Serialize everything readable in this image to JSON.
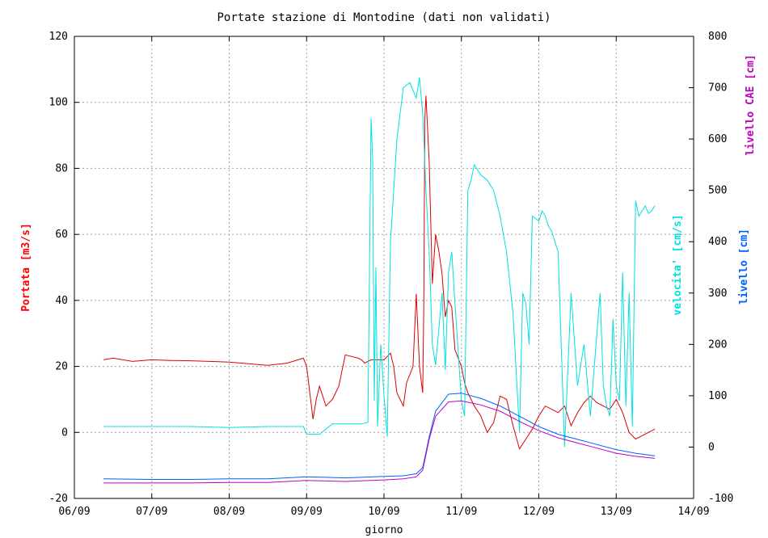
{
  "chart_data": {
    "type": "line",
    "title": "Portate stazione di Montodine (dati non validati)",
    "xlabel": "giorno",
    "x_ticks": [
      "06/09",
      "07/09",
      "08/09",
      "09/09",
      "10/09",
      "11/09",
      "12/09",
      "13/09",
      "14/09"
    ],
    "xlim": [
      "06/09 00:00",
      "14/09 00:00"
    ],
    "y_left": {
      "label": "Portata [m3/s]",
      "ylim": [
        -20,
        120
      ],
      "ticks": [
        -20,
        0,
        20,
        40,
        60,
        80,
        100,
        120
      ],
      "color": "#ff0000"
    },
    "y_right": {
      "ylim": [
        -100,
        800
      ],
      "ticks": [
        -100,
        0,
        100,
        200,
        300,
        400,
        500,
        600,
        700,
        800
      ],
      "labels": [
        {
          "text": "velocita' [cm/s]",
          "color": "#00e0e0"
        },
        {
          "text": "livello [cm]",
          "color": "#0060ff"
        },
        {
          "text": "livello CAE [cm]",
          "color": "#c000c0"
        }
      ]
    },
    "grid": true,
    "series": [
      {
        "name": "Portata [m3/s]",
        "axis": "left",
        "color": "#dd0000",
        "x": [
          "06/09 09:00",
          "06/09 12:00",
          "06/09 18:00",
          "07/09 00:00",
          "07/09 06:00",
          "07/09 12:00",
          "07/09 18:00",
          "08/09 00:00",
          "08/09 06:00",
          "08/09 12:00",
          "08/09 18:00",
          "08/09 23:00",
          "09/09 00:00",
          "09/09 02:00",
          "09/09 03:00",
          "09/09 04:00",
          "09/09 06:00",
          "09/09 08:00",
          "09/09 10:00",
          "09/09 12:00",
          "09/09 14:00",
          "09/09 16:00",
          "09/09 17:00",
          "09/09 18:00",
          "09/09 20:00",
          "10/09 00:00",
          "10/09 01:00",
          "10/09 02:00",
          "10/09 03:00",
          "10/09 04:00",
          "10/09 06:00",
          "10/09 07:00",
          "10/09 09:00",
          "10/09 10:00",
          "10/09 11:00",
          "10/09 12:00",
          "10/09 12:20",
          "10/09 12:40",
          "10/09 13:00",
          "10/09 14:00",
          "10/09 15:00",
          "10/09 16:00",
          "10/09 17:00",
          "10/09 18:00",
          "10/09 19:00",
          "10/09 20:00",
          "10/09 21:00",
          "10/09 22:00",
          "11/09 00:00",
          "11/09 01:00",
          "11/09 02:00",
          "11/09 03:00",
          "11/09 04:00",
          "11/09 06:00",
          "11/09 08:00",
          "11/09 10:00",
          "11/09 12:00",
          "11/09 14:00",
          "11/09 16:00",
          "11/09 18:00",
          "11/09 20:00",
          "11/09 22:00",
          "12/09 00:00",
          "12/09 02:00",
          "12/09 04:00",
          "12/09 06:00",
          "12/09 08:00",
          "12/09 10:00",
          "12/09 12:00",
          "12/09 14:00",
          "12/09 16:00",
          "12/09 18:00",
          "12/09 20:00",
          "12/09 22:00",
          "13/09 00:00",
          "13/09 02:00",
          "13/09 04:00",
          "13/09 06:00",
          "13/09 08:00",
          "13/09 10:00",
          "13/09 12:00"
        ],
        "y": [
          22,
          22.5,
          21.5,
          22,
          21.8,
          21.7,
          21.5,
          21.3,
          20.8,
          20.3,
          21,
          22.5,
          20,
          4,
          10,
          14,
          8,
          10,
          14,
          23.5,
          23,
          22.5,
          22,
          21,
          22,
          22,
          23,
          24,
          20,
          12,
          8,
          15,
          20,
          42,
          20,
          12,
          38,
          95,
          102,
          82,
          45,
          60,
          55,
          48,
          35,
          40,
          38,
          25,
          20,
          15,
          12,
          10,
          8,
          5,
          0,
          3,
          11,
          10,
          2,
          -5,
          -2,
          1,
          5,
          8,
          7,
          6,
          8,
          2,
          6,
          9,
          11,
          9,
          8,
          7,
          10,
          6,
          0,
          -2,
          -1,
          0,
          1
        ]
      },
      {
        "name": "velocita' [cm/s]",
        "axis": "right",
        "color": "#00e0e0",
        "x": [
          "06/09 09:00",
          "07/09 00:00",
          "07/09 12:00",
          "08/09 00:00",
          "08/09 12:00",
          "08/09 23:00",
          "09/09 00:00",
          "09/09 04:00",
          "09/09 08:00",
          "09/09 12:00",
          "09/09 17:00",
          "09/09 19:00",
          "09/09 20:00",
          "09/09 20:30",
          "09/09 21:00",
          "09/09 21:30",
          "09/09 22:00",
          "09/09 23:00",
          "10/09 00:00",
          "10/09 01:00",
          "10/09 02:00",
          "10/09 04:00",
          "10/09 06:00",
          "10/09 08:00",
          "10/09 10:00",
          "10/09 11:00",
          "10/09 12:00",
          "10/09 13:00",
          "10/09 14:00",
          "10/09 15:00",
          "10/09 16:00",
          "10/09 17:00",
          "10/09 18:00",
          "10/09 19:00",
          "10/09 20:00",
          "10/09 21:00",
          "10/09 22:00",
          "11/09 00:00",
          "11/09 01:00",
          "11/09 02:00",
          "11/09 03:00",
          "11/09 04:00",
          "11/09 06:00",
          "11/09 08:00",
          "11/09 10:00",
          "11/09 12:00",
          "11/09 14:00",
          "11/09 16:00",
          "11/09 18:00",
          "11/09 19:00",
          "11/09 20:00",
          "11/09 21:00",
          "11/09 22:00",
          "12/09 00:00",
          "12/09 01:00",
          "12/09 02:00",
          "12/09 03:00",
          "12/09 04:00",
          "12/09 05:00",
          "12/09 06:00",
          "12/09 08:00",
          "12/09 10:00",
          "12/09 12:00",
          "12/09 14:00",
          "12/09 16:00",
          "12/09 18:00",
          "12/09 19:00",
          "12/09 20:00",
          "12/09 21:00",
          "12/09 22:00",
          "12/09 23:00",
          "13/09 00:00",
          "13/09 01:00",
          "13/09 02:00",
          "13/09 03:00",
          "13/09 04:00",
          "13/09 05:00",
          "13/09 06:00",
          "13/09 07:00",
          "13/09 08:00",
          "13/09 09:00",
          "13/09 10:00",
          "13/09 11:00",
          "13/09 12:00"
        ],
        "y": [
          40,
          40,
          40,
          38,
          40,
          40,
          25,
          25,
          45,
          45,
          45,
          48,
          640,
          560,
          90,
          350,
          40,
          200,
          100,
          20,
          400,
          600,
          700,
          710,
          680,
          720,
          650,
          500,
          380,
          200,
          160,
          230,
          300,
          150,
          340,
          380,
          280,
          90,
          60,
          500,
          520,
          550,
          530,
          520,
          500,
          450,
          380,
          260,
          30,
          300,
          280,
          200,
          450,
          440,
          460,
          450,
          430,
          420,
          400,
          380,
          0,
          300,
          120,
          200,
          60,
          220,
          300,
          120,
          80,
          60,
          250,
          120,
          90,
          340,
          80,
          300,
          40,
          480,
          450,
          460,
          470,
          455,
          460,
          470
        ]
      },
      {
        "name": "livello [cm]",
        "axis": "right",
        "color": "#0060ff",
        "x": [
          "06/09 09:00",
          "07/09 00:00",
          "07/09 12:00",
          "08/09 00:00",
          "08/09 12:00",
          "09/09 00:00",
          "09/09 06:00",
          "09/09 12:00",
          "10/09 00:00",
          "10/09 06:00",
          "10/09 10:00",
          "10/09 12:00",
          "10/09 14:00",
          "10/09 16:00",
          "10/09 20:00",
          "11/09 00:00",
          "11/09 06:00",
          "11/09 12:00",
          "11/09 18:00",
          "12/09 00:00",
          "12/09 06:00",
          "12/09 12:00",
          "12/09 18:00",
          "13/09 00:00",
          "13/09 06:00",
          "13/09 12:00"
        ],
        "y": [
          -62,
          -63,
          -63,
          -62,
          -62,
          -58,
          -59,
          -60,
          -57,
          -56,
          -52,
          -40,
          20,
          70,
          103,
          105,
          95,
          80,
          60,
          40,
          25,
          15,
          5,
          -5,
          -12,
          -17
        ]
      },
      {
        "name": "livello CAE [cm]",
        "axis": "right",
        "color": "#c000c0",
        "x": [
          "06/09 09:00",
          "07/09 00:00",
          "07/09 12:00",
          "08/09 00:00",
          "08/09 12:00",
          "09/09 00:00",
          "09/09 06:00",
          "09/09 12:00",
          "10/09 00:00",
          "10/09 06:00",
          "10/09 10:00",
          "10/09 12:00",
          "10/09 14:00",
          "10/09 16:00",
          "10/09 20:00",
          "11/09 00:00",
          "11/09 06:00",
          "11/09 12:00",
          "11/09 18:00",
          "12/09 00:00",
          "12/09 06:00",
          "12/09 12:00",
          "12/09 18:00",
          "13/09 00:00",
          "13/09 06:00",
          "13/09 12:00"
        ],
        "y": [
          -70,
          -70,
          -70,
          -69,
          -69,
          -65,
          -66,
          -67,
          -64,
          -62,
          -58,
          -45,
          15,
          60,
          88,
          90,
          82,
          70,
          50,
          32,
          18,
          8,
          -2,
          -12,
          -18,
          -22
        ]
      }
    ]
  }
}
